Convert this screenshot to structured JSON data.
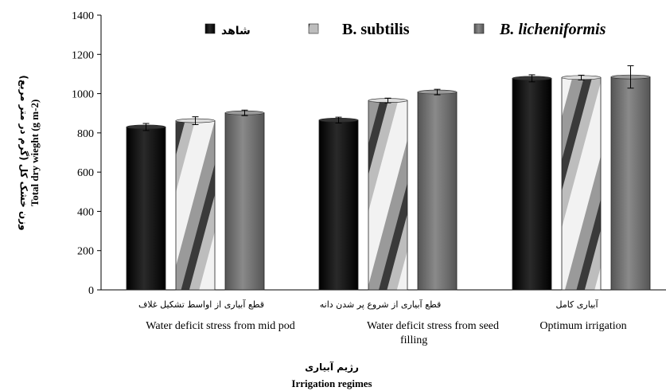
{
  "chart_data": {
    "type": "bar",
    "categories": [
      {
        "fa": "قطع آبیاری از اواسط تشکیل غلاف",
        "en": [
          "Water deficit stress from mid pod"
        ]
      },
      {
        "fa": "قطع آبیاری از شروع پر شدن دانه",
        "en": [
          "Water deficit stress from seed",
          "filling"
        ]
      },
      {
        "fa": "آبیاری کامل",
        "en": [
          "Optimum irrigation"
        ]
      }
    ],
    "series": [
      {
        "name": "شاهد",
        "values": [
          830,
          865,
          1078
        ],
        "errors": [
          18,
          15,
          18
        ],
        "fill": "black"
      },
      {
        "name": "B. subtilis",
        "values": [
          862,
          965,
          1082
        ],
        "errors": [
          20,
          12,
          12
        ],
        "fill": "stripe"
      },
      {
        "name": "B. licheniformis",
        "values": [
          902,
          1008,
          1085
        ],
        "errors": [
          14,
          14,
          57
        ],
        "fill": "gray"
      }
    ],
    "ylim": [
      0,
      1400
    ],
    "yticks": [
      0,
      200,
      400,
      600,
      800,
      1000,
      1200,
      1400
    ],
    "ylabel_en": "Total dry wieght (g m-2)",
    "ylabel_fa": "وزن خشک کل (گرم در متر مربع)",
    "xlabel_fa": "رژیم آبیاری",
    "xlabel_en": "Irrigation  regimes",
    "legend_position": "top"
  },
  "colors": {
    "black": "#111111",
    "gray": "#6e6e6e",
    "stripe_dark": "#444444",
    "stripe_light": "#f2f2f2"
  }
}
